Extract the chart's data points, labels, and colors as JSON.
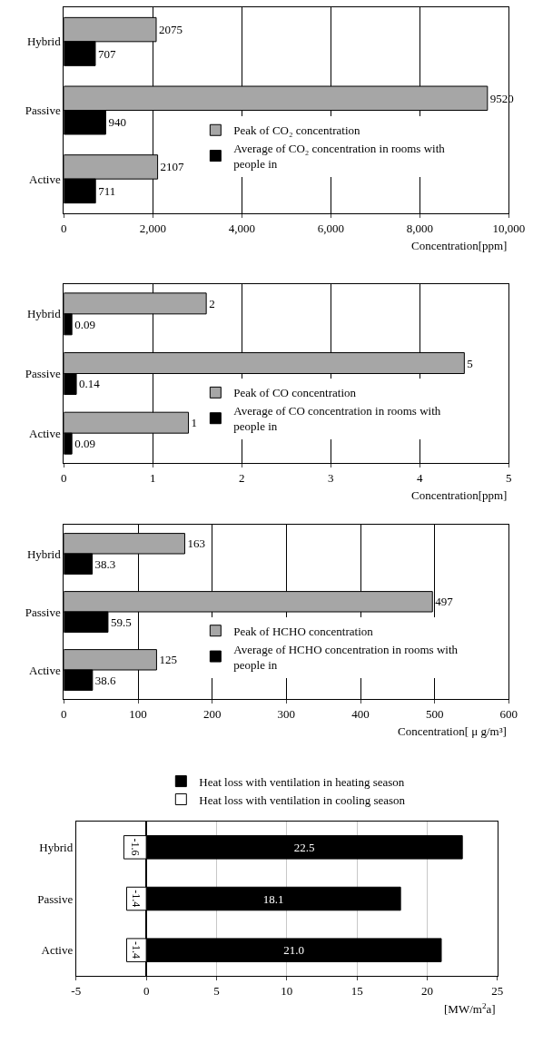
{
  "chart_data": [
    {
      "type": "bar",
      "orientation": "horizontal",
      "categories": [
        "Hybrid",
        "Passive",
        "Active"
      ],
      "xlabel": "Concentration[ppm]",
      "xlim": [
        0,
        10000
      ],
      "xticks": [
        0,
        {
          "value": 2000,
          "label": "2,000"
        },
        {
          "value": 4000,
          "label": "4,000"
        },
        {
          "value": 6000,
          "label": "6,000"
        },
        {
          "value": 8000,
          "label": "8,000"
        },
        {
          "value": 10000,
          "label": "10,000"
        }
      ],
      "grid": "x",
      "legend": "right",
      "series": [
        {
          "name": "Peak of CO₂ concentration",
          "color": "#a6a6a6",
          "values": [
            2075,
            9520,
            2107
          ],
          "value_labels": [
            "2075",
            "9520",
            "2107"
          ]
        },
        {
          "name": "Average of CO₂ concentration in rooms with people in",
          "color": "#000000",
          "values": [
            707,
            940,
            711
          ],
          "value_labels": [
            "707",
            "940",
            "711"
          ]
        }
      ]
    },
    {
      "type": "bar",
      "orientation": "horizontal",
      "categories": [
        "Hybrid",
        "Passive",
        "Active"
      ],
      "xlabel": "Concentration[ppm]",
      "xlim": [
        0,
        5
      ],
      "xticks": [
        0,
        1,
        2,
        3,
        4,
        5
      ],
      "grid": "x",
      "legend": "right",
      "series": [
        {
          "name": "Peak of CO concentration",
          "color": "#a6a6a6",
          "values": [
            1.6,
            4.5,
            1.4
          ],
          "value_labels": [
            "2",
            "5",
            "1"
          ]
        },
        {
          "name": "Average of CO concentration in rooms with people in",
          "color": "#000000",
          "values": [
            0.09,
            0.14,
            0.09
          ],
          "value_labels": [
            "0.09",
            "0.14",
            "0.09"
          ]
        }
      ]
    },
    {
      "type": "bar",
      "orientation": "horizontal",
      "categories": [
        "Hybrid",
        "Passive",
        "Active"
      ],
      "xlabel": "Concentration[ μ g/m³]",
      "xlim": [
        0,
        600
      ],
      "xticks": [
        0,
        100,
        200,
        300,
        400,
        500,
        600
      ],
      "grid": "x",
      "legend": "right",
      "series": [
        {
          "name": "Peak of HCHO concentration",
          "color": "#a6a6a6",
          "values": [
            163,
            497,
            125
          ],
          "value_labels": [
            "163",
            "497",
            "125"
          ]
        },
        {
          "name": "Average of HCHO concentration in rooms with people in",
          "color": "#000000",
          "values": [
            38.3,
            59.5,
            38.6
          ],
          "value_labels": [
            "38.3",
            "59.5",
            "38.6"
          ]
        }
      ]
    },
    {
      "type": "bar",
      "orientation": "horizontal",
      "stacked": true,
      "categories": [
        "Hybrid",
        "Passive",
        "Active"
      ],
      "xlabel": "[MW/m$^{2}$a]",
      "xlim": [
        -5,
        25
      ],
      "xticks": [
        -5,
        0,
        5,
        10,
        15,
        20,
        25
      ],
      "grid": "x",
      "legend": "top",
      "series": [
        {
          "name": "Heat loss with ventilation in heating season",
          "color": "#000000",
          "values": [
            22.5,
            18.1,
            21.0
          ],
          "value_labels": [
            "22.5",
            "18.1",
            "21.0"
          ]
        },
        {
          "name": "Heat loss with ventilation in cooling season",
          "color": "#ffffff",
          "values": [
            -1.6,
            -1.4,
            -1.4
          ],
          "value_labels": [
            "-1.6",
            "-1.4",
            "-1.4"
          ]
        }
      ]
    }
  ]
}
